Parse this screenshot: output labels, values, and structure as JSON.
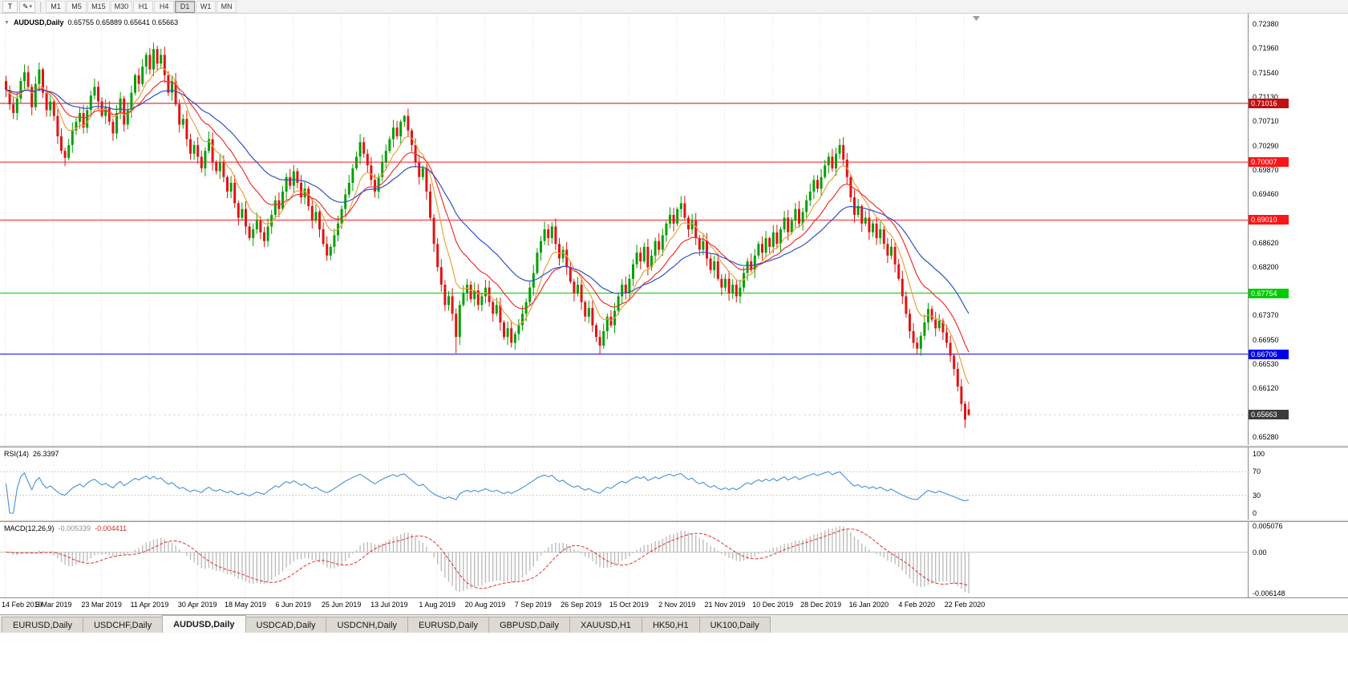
{
  "toolbar": {
    "text_tool_label": "T",
    "timeframes": [
      "M1",
      "M5",
      "M15",
      "M30",
      "H1",
      "H4",
      "D1",
      "W1",
      "MN"
    ],
    "active_timeframe": "D1"
  },
  "chart": {
    "title_symbol": "AUDUSD,Daily",
    "ohlc_text": "0.65755 0.65889 0.65641 0.65663",
    "price_axis": [
      "0.72380",
      "0.71960",
      "0.71540",
      "0.71130",
      "0.70710",
      "0.70290",
      "0.69870",
      "0.69460",
      "0.69040",
      "0.68620",
      "0.68200",
      "0.67780",
      "0.67370",
      "0.66950",
      "0.66530",
      "0.66120",
      "0.65700",
      "0.65280"
    ],
    "date_axis": [
      "14 Feb 2019",
      "5 Mar 2019",
      "23 Mar 2019",
      "11 Apr 2019",
      "30 Apr 2019",
      "18 May 2019",
      "6 Jun 2019",
      "25 Jun 2019",
      "13 Jul 2019",
      "1 Aug 2019",
      "20 Aug 2019",
      "7 Sep 2019",
      "26 Sep 2019",
      "15 Oct 2019",
      "2 Nov 2019",
      "21 Nov 2019",
      "10 Dec 2019",
      "28 Dec 2019",
      "16 Jan 2020",
      "4 Feb 2020",
      "22 Feb 2020"
    ],
    "levels": [
      {
        "label": "0.71016",
        "price": 0.71016,
        "color": "#C01010"
      },
      {
        "label": "0.70007",
        "price": 0.70007,
        "color": "#FF1414"
      },
      {
        "label": "0.69010",
        "price": 0.6901,
        "color": "#FF1414"
      },
      {
        "label": "0.67754",
        "price": 0.67754,
        "color": "#00CC00"
      },
      {
        "label": "0.66706",
        "price": 0.66706,
        "color": "#0000EE"
      }
    ],
    "current": {
      "label": "0.65663",
      "price": 0.65663,
      "badge_color": "#3C3C3C"
    }
  },
  "chart_data": {
    "type": "candlestick",
    "symbol": "AUDUSD",
    "timeframe": "Daily",
    "colors": {
      "up": "#04A004",
      "down": "#E01414",
      "rsi": "#4A90D9",
      "macd_hist": "#BDBDBD",
      "macd_signal": "#E03030",
      "grid": "#E3E3E3"
    },
    "main": {
      "axis_min": 0.6528,
      "axis_max": 0.7238,
      "first_open": 0.714,
      "closes": [
        0.7125,
        0.71,
        0.7085,
        0.711,
        0.714,
        0.7155,
        0.713,
        0.7095,
        0.7135,
        0.716,
        0.712,
        0.709,
        0.7105,
        0.708,
        0.7045,
        0.702,
        0.7008,
        0.703,
        0.7055,
        0.707,
        0.7085,
        0.706,
        0.709,
        0.7115,
        0.713,
        0.7105,
        0.708,
        0.7095,
        0.707,
        0.705,
        0.7085,
        0.711,
        0.7065,
        0.709,
        0.712,
        0.715,
        0.7135,
        0.7165,
        0.7185,
        0.716,
        0.7195,
        0.717,
        0.7185,
        0.715,
        0.712,
        0.714,
        0.71,
        0.7065,
        0.7075,
        0.704,
        0.7015,
        0.703,
        0.701,
        0.699,
        0.702,
        0.704,
        0.7,
        0.6985,
        0.7,
        0.6975,
        0.695,
        0.6965,
        0.693,
        0.6905,
        0.692,
        0.689,
        0.687,
        0.6885,
        0.69,
        0.688,
        0.6865,
        0.689,
        0.691,
        0.6935,
        0.692,
        0.695,
        0.6975,
        0.696,
        0.6985,
        0.6965,
        0.694,
        0.6955,
        0.6925,
        0.69,
        0.6915,
        0.6885,
        0.686,
        0.684,
        0.6855,
        0.6875,
        0.6895,
        0.692,
        0.6945,
        0.6965,
        0.699,
        0.701,
        0.7035,
        0.7015,
        0.6995,
        0.697,
        0.695,
        0.6975,
        0.7,
        0.702,
        0.704,
        0.706,
        0.7045,
        0.707,
        0.708,
        0.7055,
        0.703,
        0.7,
        0.6975,
        0.699,
        0.695,
        0.6905,
        0.686,
        0.682,
        0.679,
        0.6755,
        0.677,
        0.674,
        0.67,
        0.6755,
        0.6775,
        0.679,
        0.6765,
        0.678,
        0.6755,
        0.677,
        0.6785,
        0.676,
        0.674,
        0.6755,
        0.6725,
        0.67,
        0.6715,
        0.669,
        0.6705,
        0.672,
        0.674,
        0.676,
        0.6785,
        0.681,
        0.6845,
        0.6865,
        0.6885,
        0.687,
        0.689,
        0.686,
        0.6835,
        0.685,
        0.682,
        0.6795,
        0.6775,
        0.679,
        0.676,
        0.6735,
        0.675,
        0.672,
        0.67,
        0.6685,
        0.671,
        0.6735,
        0.672,
        0.6745,
        0.677,
        0.679,
        0.6775,
        0.68,
        0.6825,
        0.6845,
        0.683,
        0.6855,
        0.682,
        0.684,
        0.6865,
        0.685,
        0.6875,
        0.6895,
        0.691,
        0.6895,
        0.692,
        0.693,
        0.6905,
        0.6885,
        0.69,
        0.687,
        0.685,
        0.6865,
        0.6835,
        0.6815,
        0.683,
        0.68,
        0.6785,
        0.68,
        0.6775,
        0.679,
        0.677,
        0.6785,
        0.681,
        0.683,
        0.6815,
        0.684,
        0.686,
        0.6845,
        0.687,
        0.6855,
        0.688,
        0.686,
        0.6885,
        0.6905,
        0.688,
        0.69,
        0.692,
        0.6895,
        0.6915,
        0.6935,
        0.695,
        0.697,
        0.6955,
        0.6975,
        0.6995,
        0.701,
        0.699,
        0.7015,
        0.703,
        0.7005,
        0.6975,
        0.694,
        0.691,
        0.6925,
        0.6895,
        0.6905,
        0.688,
        0.6895,
        0.687,
        0.6885,
        0.686,
        0.684,
        0.6855,
        0.6825,
        0.68,
        0.677,
        0.674,
        0.671,
        0.669,
        0.668,
        0.6702,
        0.6725,
        0.6748,
        0.673,
        0.6715,
        0.6728,
        0.6708,
        0.669,
        0.6668,
        0.6645,
        0.6615,
        0.6585,
        0.6558,
        0.65663
      ],
      "extremes": [
        {
          "i": 40,
          "h": 0.7206
        },
        {
          "i": 87,
          "l": 0.6831
        },
        {
          "i": 108,
          "h": 0.7082
        },
        {
          "i": 122,
          "l": 0.6672
        },
        {
          "i": 161,
          "l": 0.66705
        },
        {
          "i": 226,
          "h": 0.7041
        },
        {
          "i": 260,
          "l": 0.6544
        },
        {
          "i": 261,
          "o": 0.65755,
          "h": 0.65889,
          "l": 0.65641,
          "c": 0.65663
        }
      ],
      "ma": [
        {
          "period": 8,
          "color": "#E8A33D"
        },
        {
          "period": 17,
          "color": "#EE3333"
        },
        {
          "period": 34,
          "color": "#3052C8"
        }
      ]
    },
    "rsi": {
      "label": "RSI(14)",
      "value": "26.3397",
      "period": 14,
      "levels": [
        70,
        30
      ],
      "axis": [
        "100",
        "70",
        "30",
        "0"
      ]
    },
    "macd": {
      "label": "MACD(12,26,9)",
      "value1": "-0.005339",
      "value2": "-0.004411",
      "fast": 12,
      "slow": 26,
      "signal": 9,
      "axis": [
        "0.005076",
        "0.00",
        "-0.006148"
      ]
    }
  },
  "tabs": {
    "labels": [
      "EURUSD,Daily",
      "USDCHF,Daily",
      "AUDUSD,Daily",
      "USDCAD,Daily",
      "USDCNH,Daily",
      "EURUSD,Daily",
      "GBPUSD,Daily",
      "XAUUSD,H1",
      "HK50,H1",
      "UK100,Daily"
    ],
    "active_index": 2
  }
}
